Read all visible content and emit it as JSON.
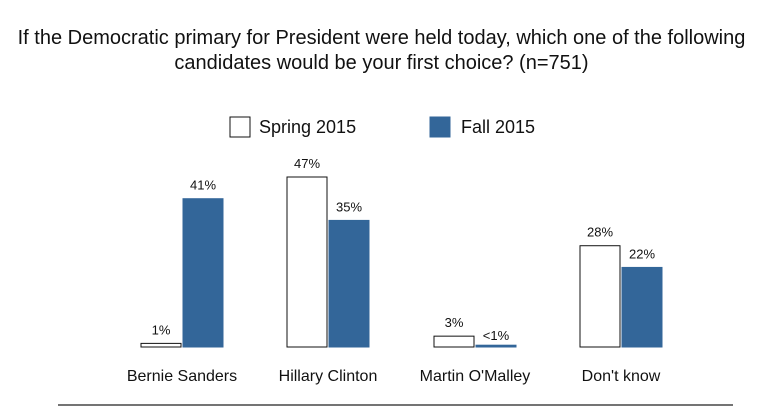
{
  "chart_data": {
    "type": "bar",
    "title": "If the Democratic primary for President were held today, which one of the following candidates would be your first choice? (n=751)",
    "categories": [
      "Bernie Sanders",
      "Hillary Clinton",
      "Martin O'Malley",
      "Don't know"
    ],
    "series": [
      {
        "name": "Spring 2015",
        "color": "#ffffff",
        "values": [
          1,
          47,
          3,
          28
        ],
        "labels": [
          "1%",
          "47%",
          "3%",
          "28%"
        ]
      },
      {
        "name": "Fall 2015",
        "color": "#336699",
        "values": [
          41,
          35,
          0.5,
          22
        ],
        "labels": [
          "41%",
          "35%",
          "<1%",
          "22%"
        ]
      }
    ],
    "ylim": [
      0,
      47
    ],
    "grid": false,
    "legend": "top-center",
    "xlabel": "",
    "ylabel": ""
  }
}
